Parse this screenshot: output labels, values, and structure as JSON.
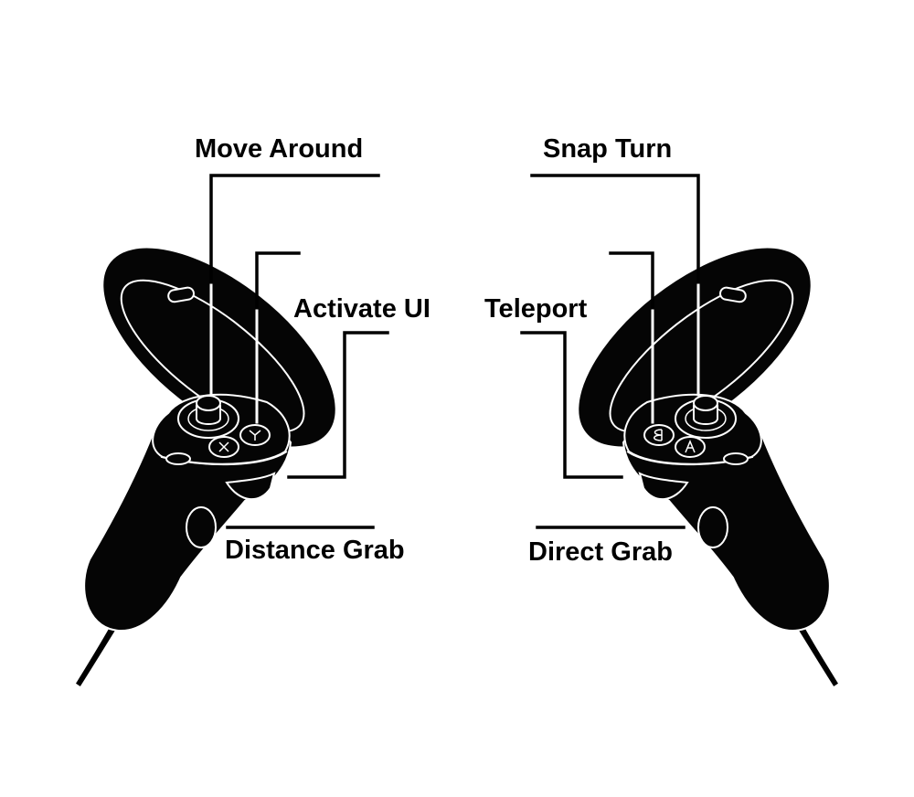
{
  "labels": {
    "move_around": "Move Around",
    "activate_ui": "Activate UI",
    "distance_grab": "Distance Grab",
    "snap_turn": "Snap Turn",
    "teleport": "Teleport",
    "direct_grab": "Direct Grab"
  },
  "colors": {
    "controller_fill": "#050505",
    "controller_edge": "#ffffff",
    "leader_line": "#000000",
    "text": "#000000",
    "background": "#ffffff"
  }
}
